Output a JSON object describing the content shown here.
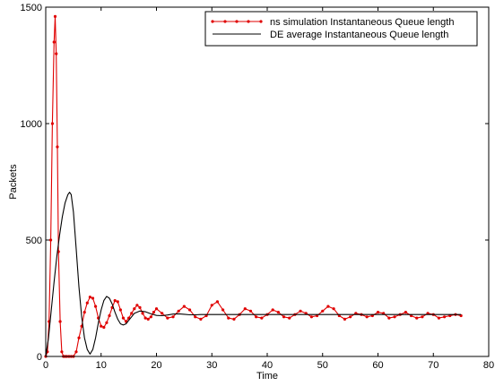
{
  "chart_data": {
    "type": "line",
    "xlabel": "Time",
    "ylabel": "Packets",
    "xlim": [
      0,
      80
    ],
    "ylim": [
      0,
      1500
    ],
    "xticks": [
      0,
      10,
      20,
      30,
      40,
      50,
      60,
      70,
      80
    ],
    "yticks": [
      0,
      500,
      1000,
      1500
    ],
    "grid": false,
    "legend_position": "top-right",
    "series": [
      {
        "name": "ns simulation Instantaneous Queue length",
        "color": "#e00000",
        "marker": "dot",
        "x": [
          0,
          0.3,
          0.6,
          0.9,
          1.2,
          1.5,
          1.7,
          1.9,
          2.1,
          2.3,
          2.6,
          2.9,
          3.2,
          3.5,
          3.8,
          4.2,
          4.6,
          5.0,
          5.5,
          6.0,
          6.5,
          7.0,
          7.5,
          8.0,
          8.5,
          9.0,
          9.5,
          10.0,
          10.5,
          11.0,
          11.5,
          12.0,
          12.5,
          13.0,
          13.5,
          14.0,
          14.5,
          15.0,
          15.5,
          16.0,
          16.5,
          17.0,
          17.5,
          18.0,
          18.5,
          19.0,
          19.5,
          20.0,
          21,
          22,
          23,
          24,
          25,
          26,
          27,
          28,
          29,
          30,
          31,
          32,
          33,
          34,
          35,
          36,
          37,
          38,
          39,
          40,
          41,
          42,
          43,
          44,
          45,
          46,
          47,
          48,
          49,
          50,
          51,
          52,
          53,
          54,
          55,
          56,
          57,
          58,
          59,
          60,
          61,
          62,
          63,
          64,
          65,
          66,
          67,
          68,
          69,
          70,
          71,
          72,
          73,
          74,
          75
        ],
        "y": [
          0,
          20,
          150,
          500,
          1000,
          1350,
          1460,
          1300,
          900,
          450,
          150,
          20,
          0,
          0,
          0,
          0,
          0,
          0,
          20,
          80,
          130,
          190,
          230,
          255,
          250,
          215,
          165,
          130,
          125,
          145,
          175,
          210,
          240,
          235,
          200,
          165,
          150,
          165,
          185,
          205,
          220,
          210,
          185,
          165,
          160,
          170,
          190,
          205,
          185,
          165,
          170,
          195,
          215,
          200,
          170,
          160,
          175,
          220,
          235,
          200,
          165,
          160,
          180,
          205,
          195,
          170,
          165,
          180,
          200,
          190,
          170,
          165,
          180,
          195,
          185,
          170,
          175,
          195,
          215,
          205,
          175,
          160,
          170,
          185,
          180,
          170,
          175,
          190,
          185,
          165,
          170,
          180,
          190,
          175,
          165,
          170,
          185,
          180,
          165,
          170,
          175,
          180,
          175
        ]
      },
      {
        "name": "DE average Instantaneous Queue length",
        "color": "#000000",
        "marker": "none",
        "x": [
          0,
          0.5,
          1.0,
          1.5,
          2.0,
          2.5,
          3.0,
          3.5,
          4.0,
          4.3,
          4.6,
          5.0,
          5.5,
          6.0,
          6.5,
          7.0,
          7.5,
          8.0,
          8.5,
          9.0,
          9.5,
          10.0,
          10.5,
          11.0,
          11.5,
          12.0,
          12.5,
          13.0,
          13.5,
          14.0,
          14.5,
          15.0,
          15.5,
          16.0,
          17.0,
          18.0,
          19.0,
          20.0,
          21.0,
          22.0,
          23.0,
          24.0,
          25.0,
          26.0,
          27.0,
          28.0,
          30.0,
          35.0,
          40.0,
          50.0,
          60.0,
          70.0,
          75.0
        ],
        "y": [
          0,
          80,
          200,
          320,
          430,
          520,
          600,
          660,
          695,
          705,
          695,
          620,
          460,
          300,
          170,
          80,
          30,
          10,
          30,
          80,
          145,
          200,
          240,
          258,
          250,
          225,
          190,
          160,
          140,
          135,
          140,
          155,
          170,
          185,
          195,
          192,
          183,
          176,
          175,
          178,
          182,
          183,
          181,
          179,
          179,
          180,
          180,
          180,
          180,
          180,
          180,
          180,
          180
        ]
      }
    ]
  }
}
